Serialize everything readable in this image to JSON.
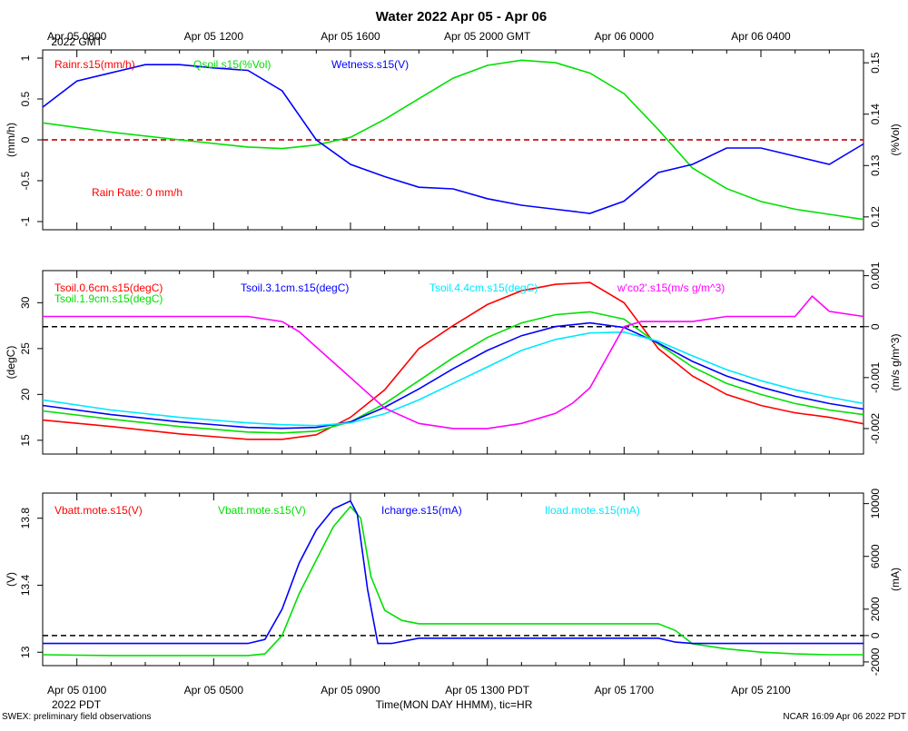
{
  "page": {
    "title": "Water 2022 Apr 05 - Apr 06",
    "top_time_labels": [
      "Apr 05 0800\n2022 GMT",
      "Apr 05 1200",
      "Apr 05 1600",
      "Apr 05 2000 GMT",
      "Apr 06 0000",
      "Apr 06 0400"
    ],
    "bottom_time_labels": [
      "Apr 05 0100",
      "Apr 05 0500",
      "Apr 05 0900",
      "Apr 05 1300 PDT",
      "Apr 05 1700",
      "Apr 05 2100"
    ],
    "bottom_sub_label": "2022 PDT",
    "xaxis_label": "Time(MON DAY HHMM), tic=HR",
    "footer_left": "SWEX: preliminary field observations",
    "footer_right": "NCAR 16:09 Apr 06 2022 PDT"
  },
  "colors": {
    "red": "#ff0000",
    "green": "#00e000",
    "blue": "#0000ff",
    "cyan": "#00e8ff",
    "magenta": "#ff00ff",
    "black": "#000000"
  },
  "chart_data": [
    {
      "type": "line",
      "panel": "water",
      "x_unit": "hours since Apr 05 0000 PDT",
      "xlim": [
        0,
        24
      ],
      "left_axis": {
        "label": "(mm/h)",
        "ylim": [
          -1.1,
          1.1
        ],
        "ticks": [
          -1.0,
          -0.5,
          0.0,
          0.5,
          1.0
        ]
      },
      "right_axis": {
        "label": "(%Vol)",
        "ylim": [
          0.1175,
          0.1525
        ],
        "ticks": [
          0.12,
          0.13,
          0.14,
          0.15
        ]
      },
      "annotation": "Rain Rate: 0 mm/h",
      "reference_line": 0.0,
      "series": [
        {
          "name": "Rainr.s15(mm/h)",
          "color": "red",
          "axis": "left",
          "x": [
            0,
            24
          ],
          "y": [
            0,
            0
          ]
        },
        {
          "name": "Qsoil.s15(%Vol)",
          "color": "green",
          "axis": "right",
          "x": [
            0,
            2,
            4,
            6,
            7,
            8,
            9,
            10,
            11,
            12,
            13,
            14,
            15,
            16,
            17,
            18,
            19,
            20,
            21,
            22,
            23,
            24
          ],
          "y": [
            0.1383,
            0.1365,
            0.135,
            0.1336,
            0.1333,
            0.134,
            0.1355,
            0.139,
            0.143,
            0.147,
            0.1495,
            0.1505,
            0.15,
            0.148,
            0.144,
            0.137,
            0.1295,
            0.1255,
            0.123,
            0.1215,
            0.1205,
            0.1195
          ]
        },
        {
          "name": "Wetness.s15(V)",
          "color": "blue",
          "axis": "left",
          "x": [
            0,
            1,
            2,
            3,
            4,
            5,
            6,
            7,
            8,
            9,
            10,
            11,
            12,
            13,
            14,
            15,
            16,
            17,
            18,
            19,
            20,
            21,
            22,
            23,
            24
          ],
          "y": [
            0.4,
            0.72,
            0.82,
            0.92,
            0.92,
            0.88,
            0.85,
            0.6,
            0.0,
            -0.3,
            -0.45,
            -0.58,
            -0.6,
            -0.72,
            -0.8,
            -0.85,
            -0.9,
            -0.75,
            -0.4,
            -0.3,
            -0.1,
            -0.1,
            -0.2,
            -0.3,
            -0.05
          ]
        }
      ]
    },
    {
      "type": "line",
      "panel": "soil-temperature",
      "x_unit": "hours since Apr 05 0000 PDT",
      "xlim": [
        0,
        24
      ],
      "left_axis": {
        "label": "(degC)",
        "ylim": [
          13.5,
          33.5
        ],
        "ticks": [
          15,
          20,
          25,
          30
        ]
      },
      "right_axis": {
        "label": "(m/s g/m^3)",
        "ylim": [
          -0.0025,
          0.0011
        ],
        "ticks": [
          -0.002,
          -0.001,
          0.0,
          0.001
        ]
      },
      "reference_line_right": 0.0,
      "series": [
        {
          "name": "Tsoil.0.6cm.s15(degC)",
          "color": "red",
          "axis": "left",
          "x": [
            0,
            2,
            4,
            6,
            7,
            8,
            9,
            10,
            11,
            12,
            13,
            14,
            15,
            16,
            17,
            18,
            19,
            20,
            21,
            22,
            23,
            24
          ],
          "y": [
            17.2,
            16.5,
            15.7,
            15.1,
            15.1,
            15.6,
            17.5,
            20.5,
            25.0,
            27.5,
            29.8,
            31.3,
            32.0,
            32.2,
            30.0,
            25.0,
            22.0,
            20.0,
            18.8,
            18.0,
            17.5,
            16.8
          ]
        },
        {
          "name": "Tsoil.1.9cm.s15(degC)",
          "color": "green",
          "axis": "left",
          "x": [
            0,
            2,
            4,
            6,
            7,
            8,
            9,
            10,
            11,
            12,
            13,
            14,
            15,
            16,
            17,
            18,
            19,
            20,
            21,
            22,
            23,
            24
          ],
          "y": [
            18.2,
            17.3,
            16.5,
            15.9,
            15.8,
            16.0,
            17.0,
            19.0,
            21.5,
            24.0,
            26.2,
            27.8,
            28.7,
            29.0,
            28.2,
            25.5,
            23.0,
            21.2,
            20.0,
            19.0,
            18.3,
            17.8
          ]
        },
        {
          "name": "Tsoil.3.1cm.s15(degC)",
          "color": "blue",
          "axis": "left",
          "x": [
            0,
            2,
            4,
            6,
            7,
            8,
            9,
            10,
            11,
            12,
            13,
            14,
            15,
            16,
            17,
            18,
            19,
            20,
            21,
            22,
            23,
            24
          ],
          "y": [
            18.8,
            17.8,
            17.0,
            16.4,
            16.3,
            16.4,
            17.0,
            18.6,
            20.6,
            22.8,
            24.8,
            26.4,
            27.4,
            27.8,
            27.3,
            25.6,
            23.6,
            22.0,
            20.8,
            19.8,
            19.0,
            18.4
          ]
        },
        {
          "name": "Tsoil.4.4cm.s15(degC)",
          "color": "cyan",
          "axis": "left",
          "x": [
            0,
            2,
            4,
            6,
            7,
            8,
            9,
            10,
            11,
            12,
            13,
            14,
            15,
            16,
            17,
            18,
            19,
            20,
            21,
            22,
            23,
            24
          ],
          "y": [
            19.4,
            18.3,
            17.5,
            16.9,
            16.7,
            16.6,
            16.9,
            17.9,
            19.4,
            21.2,
            23.0,
            24.8,
            26.0,
            26.7,
            26.8,
            25.8,
            24.2,
            22.7,
            21.5,
            20.5,
            19.7,
            19.0
          ]
        },
        {
          "name": "w'co2'.s15(m/s g/m^3)",
          "color": "magenta",
          "axis": "right",
          "x": [
            0,
            1,
            2,
            3,
            4,
            5,
            6,
            7,
            7.5,
            8,
            8.5,
            9,
            9.5,
            10,
            11,
            12,
            13,
            14,
            15,
            15.5,
            16,
            16.5,
            17,
            17.5,
            18,
            19,
            20,
            21,
            22,
            22.5,
            23,
            24
          ],
          "y": [
            0.0002,
            0.0002,
            0.0002,
            0.0002,
            0.0002,
            0.0002,
            0.0002,
            0.0001,
            -0.0001,
            -0.0004,
            -0.0007,
            -0.001,
            -0.0013,
            -0.0016,
            -0.0019,
            -0.002,
            -0.002,
            -0.0019,
            -0.0017,
            -0.0015,
            -0.0012,
            -0.0006,
            0.0,
            0.0001,
            0.0001,
            0.0001,
            0.0002,
            0.0002,
            0.0002,
            0.0006,
            0.0003,
            0.0002
          ]
        }
      ]
    },
    {
      "type": "line",
      "panel": "power",
      "x_unit": "hours since Apr 05 0000 PDT",
      "xlim": [
        0,
        24
      ],
      "left_axis": {
        "label": "(V)",
        "ylim": [
          12.92,
          13.95
        ],
        "ticks": [
          13.0,
          13.4,
          13.8
        ]
      },
      "right_axis": {
        "label": "(mA)",
        "ylim": [
          -2280,
          10800
        ],
        "ticks": [
          -2000,
          0,
          2000,
          6000,
          10000
        ]
      },
      "reference_line_right": 0,
      "series": [
        {
          "name": "Vbatt.mote.s15(V)",
          "color": "red",
          "axis": "left",
          "x": [],
          "y": []
        },
        {
          "name": "Vbatt.mote.s15(V)",
          "color": "green",
          "axis": "left",
          "x": [
            0,
            2,
            4,
            6,
            6.5,
            7,
            7.5,
            8,
            8.5,
            9,
            9.3,
            9.6,
            10,
            10.5,
            11,
            12,
            13,
            14,
            15,
            16,
            17,
            18,
            18.5,
            19,
            20,
            21,
            22,
            23,
            24
          ],
          "y": [
            12.985,
            12.98,
            12.98,
            12.98,
            12.99,
            13.1,
            13.35,
            13.55,
            13.75,
            13.87,
            13.8,
            13.45,
            13.25,
            13.19,
            13.17,
            13.17,
            13.17,
            13.17,
            13.17,
            13.17,
            13.17,
            13.17,
            13.13,
            13.05,
            13.02,
            13.0,
            12.99,
            12.985,
            12.985
          ]
        },
        {
          "name": "Icharge.s15(mA)",
          "color": "blue",
          "axis": "right",
          "x": [
            0,
            2,
            4,
            6,
            6.5,
            7,
            7.5,
            8,
            8.5,
            9,
            9.2,
            9.5,
            9.8,
            10.2,
            11,
            12,
            14,
            16,
            18,
            18.5,
            19,
            20,
            22,
            24
          ],
          "y": [
            -600,
            -600,
            -600,
            -600,
            -300,
            2000,
            5500,
            8000,
            9600,
            10200,
            9200,
            3500,
            -600,
            -600,
            -200,
            -200,
            -200,
            -200,
            -200,
            -500,
            -600,
            -600,
            -600,
            -600
          ]
        },
        {
          "name": "Iload.mote.s15(mA)",
          "color": "cyan",
          "axis": "right",
          "x": [],
          "y": []
        }
      ]
    }
  ]
}
